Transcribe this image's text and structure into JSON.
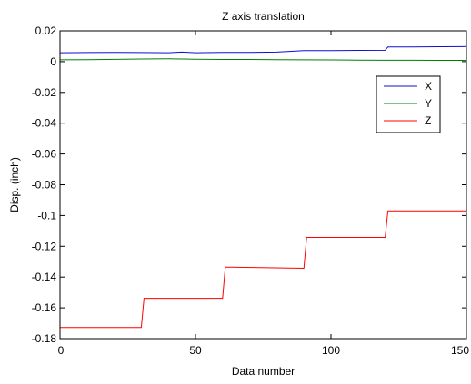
{
  "chart_data": {
    "type": "line",
    "title": "Z axis translation",
    "xlabel": "Data number",
    "ylabel": "Disp. (inch)",
    "xlim": [
      0,
      150
    ],
    "ylim": [
      -0.18,
      0.02
    ],
    "xticks": [
      0,
      50,
      100,
      150
    ],
    "xtick_labels": [
      "0",
      "50",
      "100",
      "150"
    ],
    "yticks": [
      0.02,
      0,
      -0.02,
      -0.04,
      -0.06,
      -0.08,
      -0.1,
      -0.12,
      -0.14,
      -0.16,
      -0.18
    ],
    "ytick_labels": [
      "0.02",
      "0",
      "-0.02",
      "-0.04",
      "-0.06",
      "-0.08",
      "-0.1",
      "-0.12",
      "-0.14",
      "-0.16",
      "-0.18"
    ],
    "grid": false,
    "legend_position": "upper-right",
    "series": [
      {
        "name": "X",
        "color": "#1010c8",
        "x": [
          0,
          10,
          20,
          30,
          40,
          45,
          50,
          60,
          70,
          80,
          90,
          100,
          110,
          120,
          121,
          130,
          140,
          150
        ],
        "y": [
          0.0058,
          0.0059,
          0.006,
          0.0059,
          0.0058,
          0.0062,
          0.0058,
          0.006,
          0.006,
          0.0062,
          0.0072,
          0.0072,
          0.0073,
          0.0074,
          0.0095,
          0.0095,
          0.0097,
          0.0098
        ]
      },
      {
        "name": "Y",
        "color": "#008000",
        "x": [
          0,
          10,
          20,
          30,
          40,
          50,
          60,
          70,
          80,
          90,
          100,
          110,
          120,
          130,
          140,
          150
        ],
        "y": [
          0.0012,
          0.0013,
          0.0015,
          0.0017,
          0.0018,
          0.0016,
          0.0014,
          0.0014,
          0.0013,
          0.0012,
          0.0011,
          0.001,
          0.0009,
          0.0009,
          0.0008,
          0.0008
        ]
      },
      {
        "name": "Z",
        "color": "#ff0000",
        "x": [
          0,
          30,
          31,
          60,
          61,
          90,
          91,
          120,
          121,
          150
        ],
        "y": [
          -0.1728,
          -0.1728,
          -0.1538,
          -0.1538,
          -0.1335,
          -0.1343,
          -0.1142,
          -0.1142,
          -0.097,
          -0.097
        ]
      }
    ]
  }
}
